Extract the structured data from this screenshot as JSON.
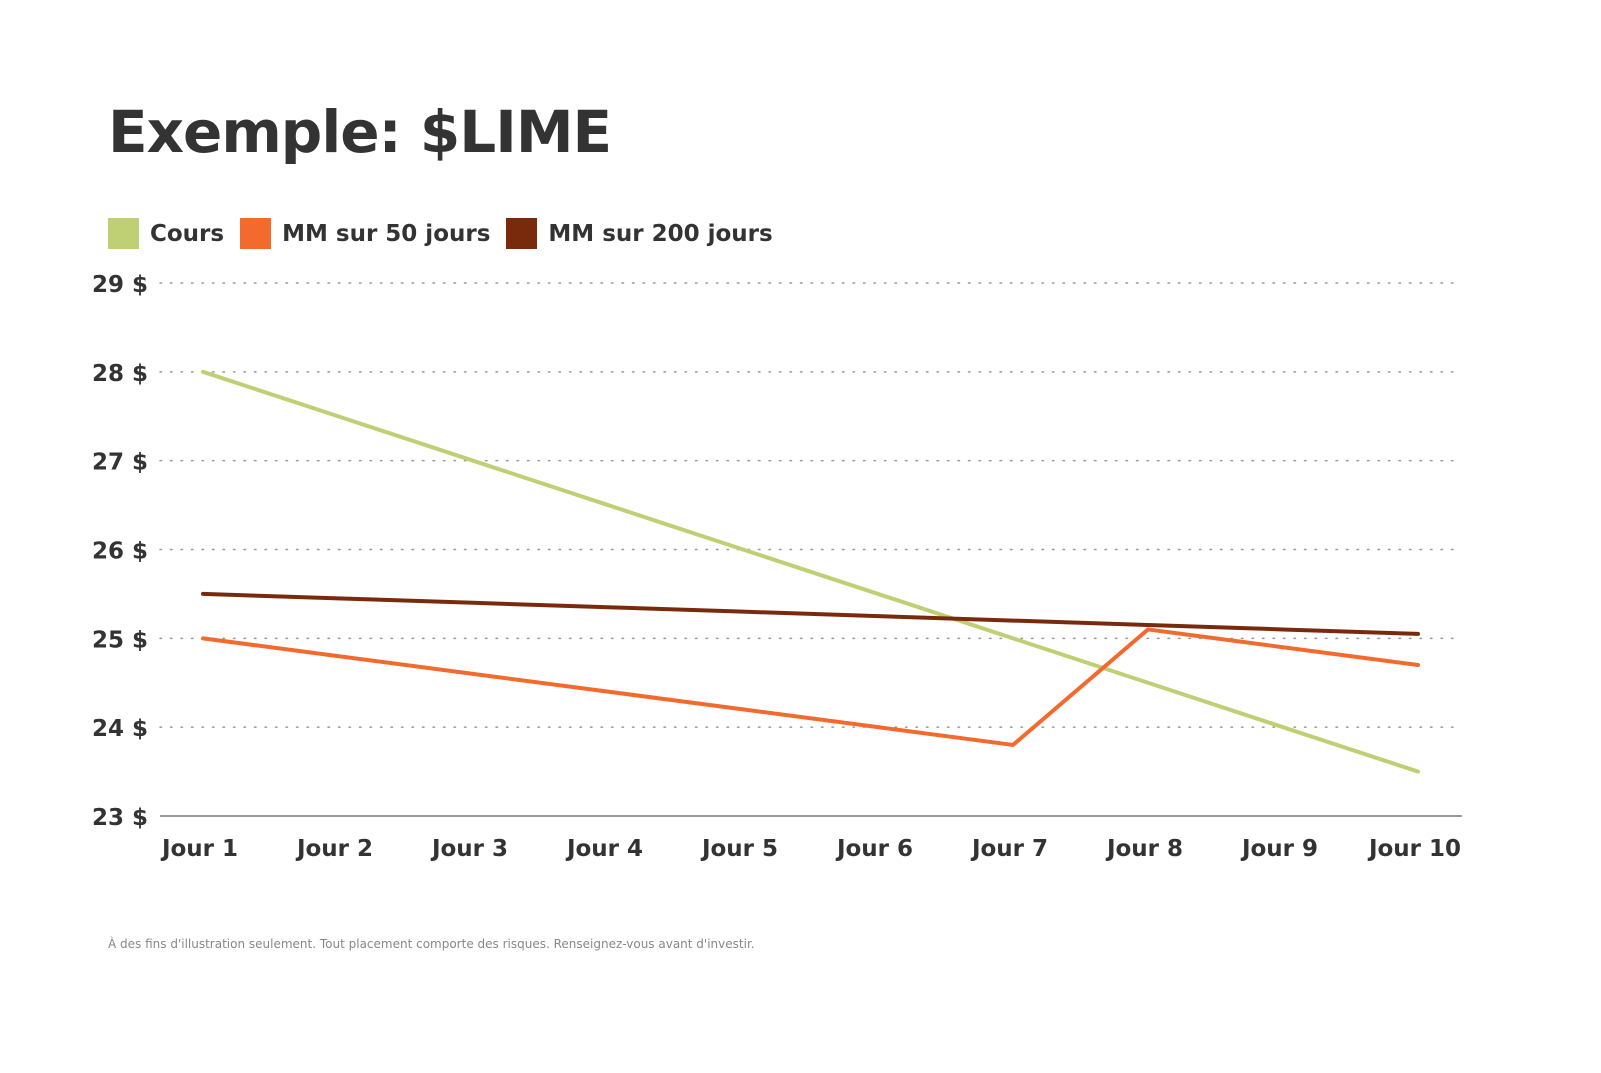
{
  "chart_data": {
    "type": "line",
    "title": "Exemple: $LIME",
    "categories": [
      "Jour 1",
      "Jour 2",
      "Jour 3",
      "Jour 4",
      "Jour 5",
      "Jour 6",
      "Jour 7",
      "Jour 8",
      "Jour 9",
      "Jour 10"
    ],
    "yticks": [
      23,
      24,
      25,
      26,
      27,
      28,
      29
    ],
    "ytick_labels": [
      "23 $",
      "24 $",
      "25 $",
      "26 $",
      "27 $",
      "28 $",
      "29 $"
    ],
    "ylim": [
      23,
      29
    ],
    "grid": "horizontal dotted",
    "legend_position": "top-left",
    "series": [
      {
        "name": "Cours",
        "color": "#bfd074",
        "values": [
          28,
          27.5,
          27,
          26.5,
          26,
          25.5,
          25,
          24.5,
          24,
          23.5
        ]
      },
      {
        "name": "MM sur 50 jours",
        "color": "#f26a2e",
        "values": [
          25,
          24.8,
          24.6,
          24.4,
          24.2,
          24.0,
          23.8,
          25.1,
          24.9,
          24.7
        ]
      },
      {
        "name": "MM sur 200 jours",
        "color": "#7a2a0c",
        "values": [
          25.5,
          25.45,
          25.4,
          25.35,
          25.3,
          25.25,
          25.2,
          25.15,
          25.1,
          25.05
        ]
      }
    ],
    "footnote": "À des fins d'illustration seulement. Tout placement comporte des risques. Renseignez-vous avant d'investir."
  }
}
